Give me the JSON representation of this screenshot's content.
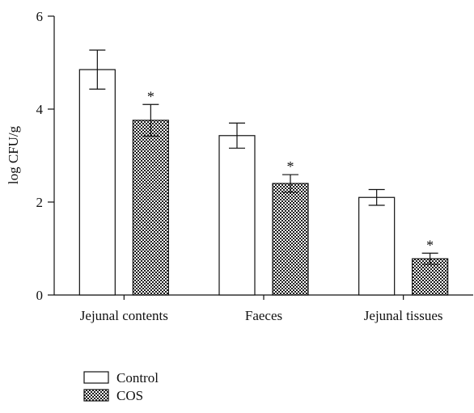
{
  "chart_data": {
    "type": "bar",
    "categories": [
      "Jejunal contents",
      "Faeces",
      "Jejunal tissues"
    ],
    "series": [
      {
        "name": "Control",
        "values": [
          4.85,
          3.43,
          2.1
        ],
        "errors": [
          0.42,
          0.27,
          0.17
        ],
        "fill": "plain"
      },
      {
        "name": "COS",
        "values": [
          3.76,
          2.4,
          0.78
        ],
        "errors": [
          0.34,
          0.19,
          0.12
        ],
        "fill": "checkered"
      }
    ],
    "significance_labels": [
      "",
      "*"
    ],
    "ylabel": "log CFU/g",
    "xlabel": "",
    "ylim": [
      0,
      6
    ],
    "yticks": [
      0,
      2,
      4,
      6
    ],
    "grid": false,
    "legend_position": "bottom-left"
  }
}
